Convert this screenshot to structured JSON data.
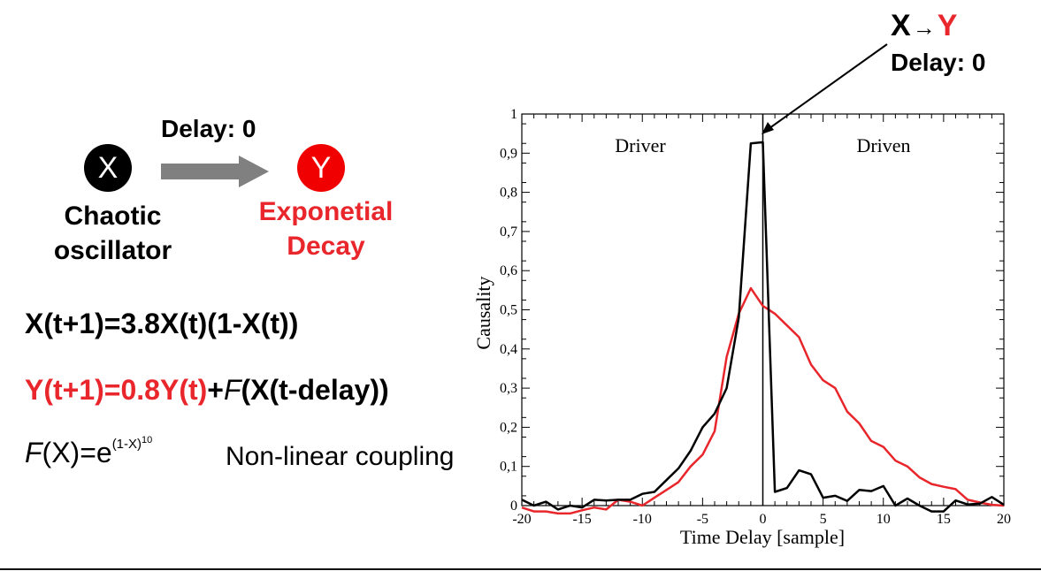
{
  "callout": {
    "title_x": "X",
    "title_arrow": "→",
    "title_y": "Y",
    "delay": "Delay: 0"
  },
  "diagram": {
    "node_x": "X",
    "node_y": "Y",
    "link_label": "Delay: 0",
    "x_caption_line1": "Chaotic",
    "x_caption_line2": "oscillator",
    "y_caption_line1": "Exponetial",
    "y_caption_line2": "Decay"
  },
  "equations": {
    "x_eq": "X(t+1)=3.8X(t)(1-X(t))",
    "y_eq_red": "Y(t+1)=0.8Y(t)",
    "y_eq_plus": "+",
    "y_eq_f": "F",
    "y_eq_rest": "(X(t-delay))",
    "f_func": "F",
    "f_body": "(X)=e",
    "f_exp": "(1-X)",
    "f_exp_power": "10",
    "coupling_note": "Non-linear coupling"
  },
  "colors": {
    "black_series": "#000000",
    "red_series": "#e8262b",
    "node_y": "#f00000",
    "link_arrow": "#808080"
  },
  "chart_data": {
    "type": "line",
    "xlabel": "Time Delay [sample]",
    "ylabel": "Causality",
    "xlim": [
      -20,
      20
    ],
    "ylim": [
      0,
      1
    ],
    "x_ticks": [
      -20,
      -15,
      -10,
      -5,
      0,
      5,
      10,
      15,
      20
    ],
    "x_tick_labels": [
      "-20",
      "-15",
      "-10",
      "-5",
      "0",
      "5",
      "10",
      "15",
      "20"
    ],
    "y_ticks": [
      0,
      0.1,
      0.2,
      0.3,
      0.4,
      0.5,
      0.6,
      0.7,
      0.8,
      0.9,
      1
    ],
    "y_tick_labels": [
      "0",
      "0,1",
      "0,2",
      "0,3",
      "0,4",
      "0,5",
      "0,6",
      "0,7",
      "0,8",
      "0,9",
      "1"
    ],
    "annotations": [
      "Driver",
      "Driven"
    ],
    "vertical_line_x": 0,
    "grid": false,
    "series": [
      {
        "color": "#000000",
        "x": [
          -20,
          -19,
          -18,
          -17,
          -16,
          -15,
          -14,
          -13,
          -12,
          -11,
          -10,
          -9,
          -8,
          -7,
          -6,
          -5,
          -4,
          -3,
          -2,
          -1,
          0,
          1,
          2,
          3,
          4,
          5,
          6,
          7,
          8,
          9,
          10,
          11,
          12,
          13,
          14,
          15,
          16,
          17,
          18,
          19,
          20
        ],
        "y": [
          0.015,
          0.0,
          0.01,
          -0.01,
          0.0,
          -0.005,
          0.015,
          0.013,
          0.015,
          0.015,
          0.03,
          0.035,
          0.065,
          0.095,
          0.14,
          0.2,
          0.235,
          0.3,
          0.48,
          0.925,
          0.928,
          0.035,
          0.045,
          0.09,
          0.08,
          0.02,
          0.025,
          0.012,
          0.04,
          0.037,
          0.05,
          0.0,
          0.018,
          0.0,
          -0.015,
          -0.015,
          0.013,
          0.003,
          0.005,
          0.022,
          0.002
        ]
      },
      {
        "color": "#e8262b",
        "x": [
          -20,
          -19,
          -18,
          -17,
          -16,
          -15,
          -14,
          -13,
          -12,
          -11,
          -10,
          -9,
          -8,
          -7,
          -6,
          -5,
          -4,
          -3,
          -2,
          -1,
          0,
          1,
          2,
          3,
          4,
          5,
          6,
          7,
          8,
          9,
          10,
          11,
          12,
          13,
          14,
          15,
          16,
          17,
          18,
          19,
          20
        ],
        "y": [
          -0.005,
          -0.015,
          -0.015,
          -0.02,
          -0.02,
          -0.012,
          -0.005,
          -0.01,
          0.015,
          0.01,
          0.0,
          0.02,
          0.04,
          0.06,
          0.1,
          0.13,
          0.19,
          0.38,
          0.49,
          0.555,
          0.51,
          0.49,
          0.46,
          0.43,
          0.36,
          0.32,
          0.3,
          0.24,
          0.21,
          0.165,
          0.15,
          0.115,
          0.1,
          0.072,
          0.055,
          0.048,
          0.042,
          0.015,
          0.008,
          0.002,
          0.0
        ]
      }
    ]
  }
}
